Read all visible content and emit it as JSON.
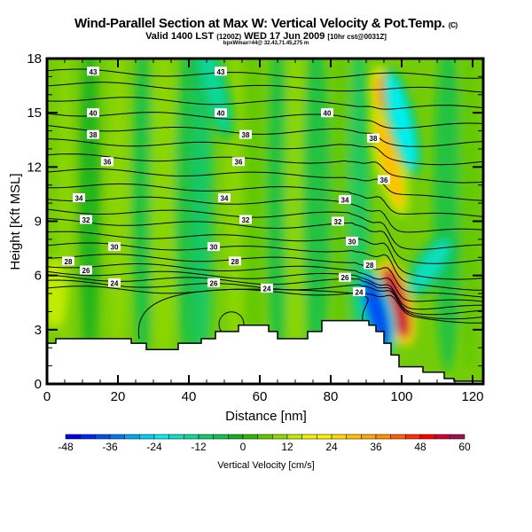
{
  "title": {
    "main": "Wind-Parallel Section at Max W: Vertical Velocity & Pot.Temp.",
    "copyright": "(C)",
    "valid_prefix": "Valid 1400 LST",
    "valid_utc": "(1200Z)",
    "valid_date": "WED 17 Jun 2009",
    "model": "[10hr cst@0031Z]",
    "location": "bpxWmax=44@ 32.43,71.45,275 m"
  },
  "chart_data": {
    "type": "heatmap",
    "title": "Wind-Parallel Section at Max W: Vertical Velocity & Pot.Temp.",
    "xlabel": "Distance [nm]",
    "ylabel": "Height [Kft MSL]",
    "xlim": [
      0,
      123
    ],
    "ylim": [
      0,
      18
    ],
    "x_ticks": [
      0,
      20,
      40,
      60,
      80,
      100,
      120
    ],
    "x_tick_labels": [
      "0",
      "20",
      "40",
      "60",
      "80",
      "100",
      "120"
    ],
    "y_ticks": [
      0,
      3,
      6,
      9,
      12,
      15,
      18
    ],
    "y_tick_labels": [
      "0",
      "3",
      "6",
      "9",
      "12",
      "15",
      "18"
    ],
    "colorbar": {
      "label": "Vertical Velocity [cm/s]",
      "min": -48,
      "max": 60,
      "step": 4,
      "tick_values": [
        -48,
        -36,
        -24,
        -12,
        0,
        12,
        24,
        36,
        48,
        60
      ],
      "tick_labels": [
        "-48",
        "-36",
        "-24",
        "-12",
        "0",
        "12",
        "24",
        "36",
        "48",
        "60"
      ],
      "colors": [
        "#0000e0",
        "#0028f0",
        "#0050f0",
        "#0078f0",
        "#00a8f0",
        "#00d0f0",
        "#00f0f0",
        "#10e0c0",
        "#10d898",
        "#10c870",
        "#10c050",
        "#10b020",
        "#30b800",
        "#60c800",
        "#90d800",
        "#c0ec00",
        "#f0f000",
        "#fff000",
        "#ffd800",
        "#ffc000",
        "#ffa800",
        "#ff9000",
        "#ff6000",
        "#ff3000",
        "#ff0000",
        "#d00030",
        "#a01050"
      ]
    },
    "terrain": [
      [
        0,
        2.25
      ],
      [
        2.5,
        2.25
      ],
      [
        2.5,
        2.5
      ],
      [
        23.75,
        2.5
      ],
      [
        23.75,
        2.25
      ],
      [
        28,
        2.25
      ],
      [
        28,
        1.9
      ],
      [
        37,
        1.9
      ],
      [
        37,
        2.25
      ],
      [
        43.5,
        2.25
      ],
      [
        43.5,
        2.5
      ],
      [
        47.5,
        2.5
      ],
      [
        47.5,
        2.9
      ],
      [
        54,
        2.9
      ],
      [
        54,
        3.25
      ],
      [
        62.5,
        3.25
      ],
      [
        62.5,
        2.9
      ],
      [
        65,
        2.9
      ],
      [
        65,
        2.5
      ],
      [
        73.5,
        2.5
      ],
      [
        73.5,
        2.9
      ],
      [
        77.5,
        2.9
      ],
      [
        77.5,
        3.5
      ],
      [
        90.75,
        3.5
      ],
      [
        90.75,
        3.25
      ],
      [
        92.75,
        3.25
      ],
      [
        92.75,
        2.9
      ],
      [
        95,
        2.9
      ],
      [
        95,
        2.25
      ],
      [
        97,
        2.25
      ],
      [
        97,
        1.6
      ],
      [
        99.25,
        1.6
      ],
      [
        99.25,
        0.95
      ],
      [
        106,
        0.95
      ],
      [
        106,
        0.65
      ],
      [
        112,
        0.65
      ],
      [
        112,
        0.3
      ],
      [
        114.75,
        0.3
      ],
      [
        114.75,
        0.15
      ],
      [
        123,
        0.15
      ]
    ],
    "velocity_features": [
      {
        "x": 97,
        "y": 14.5,
        "w": 38,
        "name": "updraft-aloft"
      },
      {
        "x": 96.5,
        "y": 12.3,
        "w": 30,
        "name": "updraft-mid"
      },
      {
        "x": 98.5,
        "y": 4.5,
        "w": 55,
        "name": "updraft-lee"
      },
      {
        "x": 93,
        "y": 4.0,
        "w": -40,
        "name": "downdraft-lee"
      },
      {
        "x": 100,
        "y": 14.5,
        "w": -22,
        "name": "downdraft-aloft"
      },
      {
        "x": 108,
        "y": 6.5,
        "w": -18,
        "name": "downdraft-wake"
      },
      {
        "x": 47,
        "y": 16.5,
        "w": -14,
        "name": "downdraft-upper"
      }
    ],
    "theta_levels": [
      {
        "theta": 24,
        "height": 5.3
      },
      {
        "theta": 25,
        "height": 5.6
      },
      {
        "theta": 26,
        "height": 5.9
      },
      {
        "theta": 27,
        "height": 6.2
      },
      {
        "theta": 28,
        "height": 6.6
      },
      {
        "theta": 29,
        "height": 7.1
      },
      {
        "theta": 30,
        "height": 7.7
      },
      {
        "theta": 31,
        "height": 8.3
      },
      {
        "theta": 32,
        "height": 9.0
      },
      {
        "theta": 33,
        "height": 9.6
      },
      {
        "theta": 34,
        "height": 10.3
      },
      {
        "theta": 35,
        "height": 11.0
      },
      {
        "theta": 36,
        "height": 11.8
      },
      {
        "theta": 37,
        "height": 12.6
      },
      {
        "theta": 38,
        "height": 13.4
      },
      {
        "theta": 39,
        "height": 14.2
      },
      {
        "theta": 40,
        "height": 15.0
      },
      {
        "theta": 41,
        "height": 15.8
      },
      {
        "theta": 42,
        "height": 16.6
      },
      {
        "theta": 43,
        "height": 17.3
      }
    ],
    "contour_labels": [
      {
        "text": "43",
        "x": 13,
        "y": 17.3
      },
      {
        "text": "43",
        "x": 49,
        "y": 17.3
      },
      {
        "text": "40",
        "x": 13,
        "y": 15.0
      },
      {
        "text": "40",
        "x": 49,
        "y": 15.0
      },
      {
        "text": "40",
        "x": 79,
        "y": 15.0
      },
      {
        "text": "38",
        "x": 13,
        "y": 13.8
      },
      {
        "text": "38",
        "x": 56,
        "y": 13.8
      },
      {
        "text": "38",
        "x": 92,
        "y": 13.6
      },
      {
        "text": "36",
        "x": 17,
        "y": 12.3
      },
      {
        "text": "36",
        "x": 54,
        "y": 12.3
      },
      {
        "text": "36",
        "x": 95,
        "y": 11.3
      },
      {
        "text": "34",
        "x": 9,
        "y": 10.3
      },
      {
        "text": "34",
        "x": 50,
        "y": 10.3
      },
      {
        "text": "34",
        "x": 84,
        "y": 10.2
      },
      {
        "text": "32",
        "x": 11,
        "y": 9.1
      },
      {
        "text": "32",
        "x": 56,
        "y": 9.1
      },
      {
        "text": "32",
        "x": 82,
        "y": 9.0
      },
      {
        "text": "30",
        "x": 19,
        "y": 7.6
      },
      {
        "text": "30",
        "x": 47,
        "y": 7.6
      },
      {
        "text": "30",
        "x": 86,
        "y": 7.9
      },
      {
        "text": "28",
        "x": 6,
        "y": 6.8
      },
      {
        "text": "28",
        "x": 53,
        "y": 6.8
      },
      {
        "text": "28",
        "x": 91,
        "y": 6.6
      },
      {
        "text": "26",
        "x": 11,
        "y": 6.3
      },
      {
        "text": "26",
        "x": 47,
        "y": 5.6
      },
      {
        "text": "26",
        "x": 84,
        "y": 5.9
      },
      {
        "text": "24",
        "x": 19,
        "y": 5.6
      },
      {
        "text": "24",
        "x": 62,
        "y": 5.3
      },
      {
        "text": "24",
        "x": 88,
        "y": 5.1
      }
    ]
  }
}
